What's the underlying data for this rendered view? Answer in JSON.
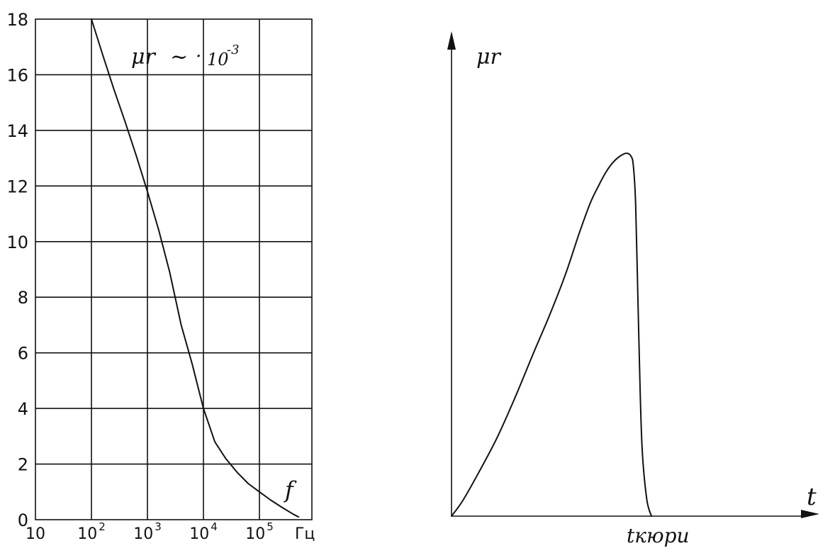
{
  "chart_data": [
    {
      "type": "line",
      "title": "",
      "annotation": {
        "symbol": "μr",
        "approx": "~",
        "dot": "·",
        "base": "10",
        "exponent": "-3"
      },
      "xscale": "log",
      "xlabel": "f",
      "xunit": "Гц",
      "xticks": [
        {
          "value": 10,
          "label": "10"
        },
        {
          "value": 100,
          "label": "10",
          "exp": "2"
        },
        {
          "value": 1000,
          "label": "10",
          "exp": "3"
        },
        {
          "value": 10000,
          "label": "10",
          "exp": "4"
        },
        {
          "value": 100000,
          "label": "10",
          "exp": "5"
        }
      ],
      "yticks": [
        0,
        2,
        4,
        6,
        8,
        10,
        12,
        14,
        16,
        18
      ],
      "xlim": [
        10,
        500000
      ],
      "ylim": [
        0,
        18
      ],
      "grid": true,
      "series": [
        {
          "x": [
            100,
            160,
            250,
            400,
            630,
            1000,
            1600,
            2500,
            4000,
            6300,
            10000,
            16000,
            25000,
            40000,
            63000,
            100000,
            160000,
            250000,
            400000,
            500000
          ],
          "y": [
            18,
            16.7,
            15.5,
            14.3,
            13.1,
            11.8,
            10.4,
            8.9,
            7.0,
            5.6,
            4.0,
            2.8,
            2.2,
            1.7,
            1.3,
            1.0,
            0.7,
            0.45,
            0.2,
            0.1
          ]
        }
      ]
    },
    {
      "type": "line",
      "title": "",
      "ylabel": "μr",
      "xlabel": "t",
      "x_marker_label": "tкюри",
      "marker_x": 0.88,
      "xlim": [
        0,
        1.6
      ],
      "ylim": [
        0,
        1.55
      ],
      "grid": false,
      "axis_arrows": true,
      "series": [
        {
          "x": [
            0,
            0.05,
            0.12,
            0.2,
            0.28,
            0.36,
            0.43,
            0.5,
            0.56,
            0.61,
            0.65,
            0.68,
            0.71,
            0.74,
            0.77,
            0.79,
            0.8,
            0.81,
            0.82,
            0.83,
            0.84,
            0.86,
            0.88
          ],
          "y": [
            0,
            0.05,
            0.14,
            0.25,
            0.38,
            0.52,
            0.64,
            0.77,
            0.9,
            1.0,
            1.06,
            1.1,
            1.13,
            1.15,
            1.16,
            1.15,
            1.12,
            1.0,
            0.7,
            0.4,
            0.2,
            0.05,
            0
          ]
        }
      ]
    }
  ]
}
